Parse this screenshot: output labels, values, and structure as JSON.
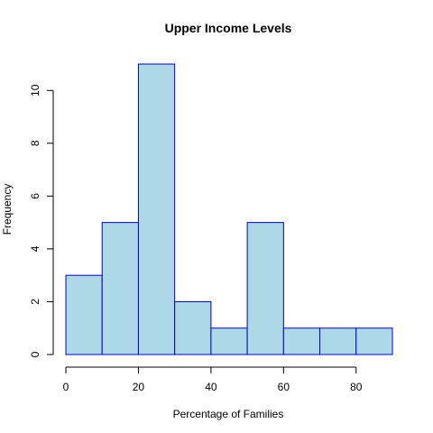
{
  "chart_data": {
    "type": "bar",
    "title": "Upper Income Levels",
    "xlabel": "Percentage of Families",
    "ylabel": "Frequency",
    "bins": [
      [
        0,
        10
      ],
      [
        10,
        20
      ],
      [
        20,
        30
      ],
      [
        30,
        40
      ],
      [
        40,
        50
      ],
      [
        50,
        60
      ],
      [
        60,
        70
      ],
      [
        70,
        80
      ],
      [
        80,
        90
      ]
    ],
    "values": [
      3,
      5,
      11,
      2,
      1,
      5,
      1,
      1,
      1
    ],
    "xlim": [
      0,
      90
    ],
    "ylim": [
      0,
      11
    ],
    "x_ticks": [
      0,
      20,
      40,
      60,
      80
    ],
    "y_ticks": [
      0,
      2,
      4,
      6,
      8,
      10
    ],
    "grid": false,
    "colors": {
      "fill": "#add8e6",
      "border": "#0000cd"
    }
  }
}
